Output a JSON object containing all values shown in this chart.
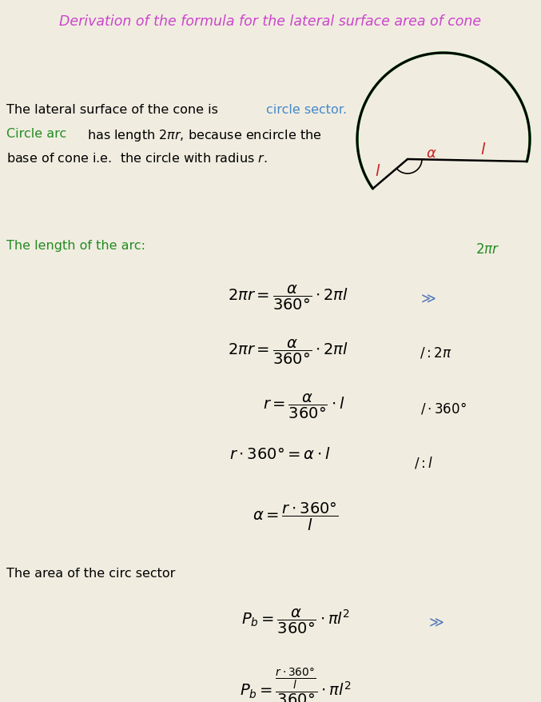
{
  "title": "Derivation of the formula for the lateral surface area of cone",
  "title_color": "#CC44CC",
  "background_color": "#F0EDE0",
  "text_color": "#000000",
  "green_color": "#228B22",
  "blue_color": "#4488CC",
  "red_color": "#CC2222",
  "chevron_color": "#5577BB",
  "fig_width": 6.77,
  "fig_height": 8.79,
  "dpi": 100
}
